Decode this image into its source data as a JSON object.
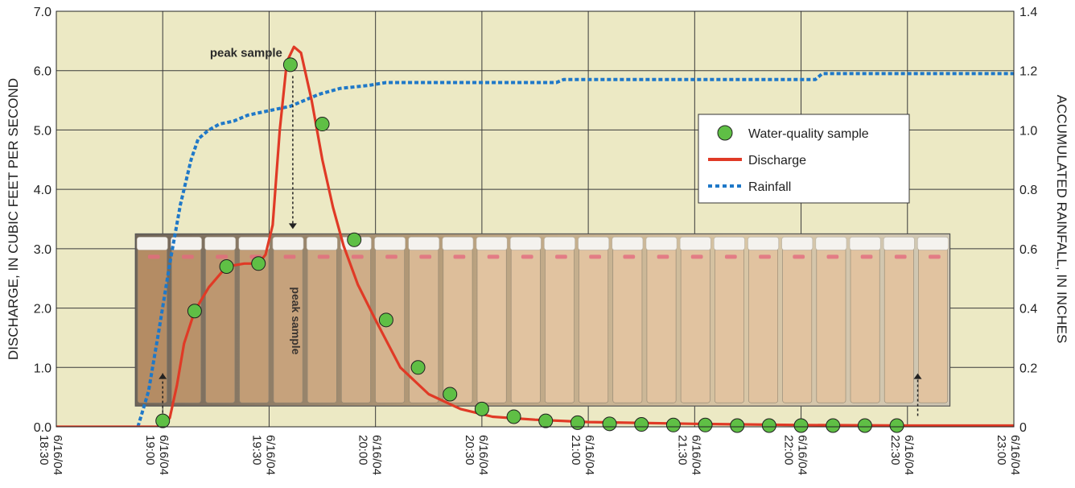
{
  "chart_data": {
    "type": "line",
    "y_left_label": "DISCHARGE, IN CUBIC FEET PER SECOND",
    "y_right_label": "ACCUMULATED RAINFALL, IN INCHES",
    "y_left_ticks": [
      "0.0",
      "1.0",
      "2.0",
      "3.0",
      "4.0",
      "5.0",
      "6.0",
      "7.0"
    ],
    "y_right_ticks": [
      "0",
      "0.2",
      "0.4",
      "0.6",
      "0.8",
      "1.0",
      "1.2",
      "1.4"
    ],
    "ylim_left": [
      0,
      7
    ],
    "ylim_right": [
      0,
      1.4
    ],
    "xlim": [
      "6/16/04 18:30",
      "6/16/04 23:00"
    ],
    "x_tick_labels": [
      {
        "time": "18:30",
        "date": "6/16/04"
      },
      {
        "time": "19:00",
        "date": "6/16/04"
      },
      {
        "time": "19:30",
        "date": "6/16/04"
      },
      {
        "time": "20:00",
        "date": "6/16/04"
      },
      {
        "time": "20:30",
        "date": "6/16/04"
      },
      {
        "time": "21:00",
        "date": "6/16/04"
      },
      {
        "time": "21:30",
        "date": "6/16/04"
      },
      {
        "time": "22:00",
        "date": "6/16/04"
      },
      {
        "time": "22:30",
        "date": "6/16/04"
      },
      {
        "time": "23:00",
        "date": "6/16/04"
      }
    ],
    "grid": true,
    "legend": {
      "placement": "upper-right",
      "entries": [
        "Water-quality sample",
        "Discharge",
        "Rainfall"
      ]
    },
    "annotations": {
      "peak_label": "peak sample",
      "photo_peak_label": "peak sample"
    },
    "series": [
      {
        "name": "Discharge",
        "axis": "left",
        "color": "#e03a26",
        "style": "solid",
        "points": [
          [
            "18:30",
            0.0
          ],
          [
            "19:00",
            0.0
          ],
          [
            "19:02",
            0.15
          ],
          [
            "19:04",
            0.7
          ],
          [
            "19:06",
            1.4
          ],
          [
            "19:09",
            1.95
          ],
          [
            "19:13",
            2.35
          ],
          [
            "19:18",
            2.7
          ],
          [
            "19:23",
            2.75
          ],
          [
            "19:27",
            2.75
          ],
          [
            "19:29",
            2.9
          ],
          [
            "19:31",
            3.4
          ],
          [
            "19:33",
            5.0
          ],
          [
            "19:35",
            6.15
          ],
          [
            "19:37",
            6.4
          ],
          [
            "19:39",
            6.3
          ],
          [
            "19:42",
            5.5
          ],
          [
            "19:45",
            4.5
          ],
          [
            "19:48",
            3.7
          ],
          [
            "19:51",
            3.05
          ],
          [
            "19:55",
            2.4
          ],
          [
            "20:00",
            1.8
          ],
          [
            "20:07",
            1.0
          ],
          [
            "20:15",
            0.55
          ],
          [
            "20:24",
            0.3
          ],
          [
            "20:33",
            0.17
          ],
          [
            "20:45",
            0.12
          ],
          [
            "21:00",
            0.08
          ],
          [
            "21:30",
            0.05
          ],
          [
            "22:00",
            0.03
          ],
          [
            "22:30",
            0.02
          ],
          [
            "23:00",
            0.02
          ]
        ]
      },
      {
        "name": "Rainfall",
        "axis": "right",
        "color": "#1f78c8",
        "style": "dotted",
        "points": [
          [
            "18:53",
            0.0
          ],
          [
            "18:56",
            0.12
          ],
          [
            "18:59",
            0.33
          ],
          [
            "19:02",
            0.55
          ],
          [
            "19:05",
            0.75
          ],
          [
            "19:08",
            0.9
          ],
          [
            "19:10",
            0.97
          ],
          [
            "19:13",
            1.0
          ],
          [
            "19:16",
            1.02
          ],
          [
            "19:20",
            1.03
          ],
          [
            "19:24",
            1.05
          ],
          [
            "19:28",
            1.06
          ],
          [
            "19:32",
            1.07
          ],
          [
            "19:36",
            1.08
          ],
          [
            "19:40",
            1.1
          ],
          [
            "19:44",
            1.12
          ],
          [
            "19:50",
            1.14
          ],
          [
            "19:58",
            1.15
          ],
          [
            "20:03",
            1.16
          ],
          [
            "20:20",
            1.16
          ],
          [
            "20:40",
            1.16
          ],
          [
            "20:51",
            1.16
          ],
          [
            "20:53",
            1.17
          ],
          [
            "21:20",
            1.17
          ],
          [
            "22:04",
            1.17
          ],
          [
            "22:06",
            1.19
          ],
          [
            "23:00",
            1.19
          ]
        ]
      },
      {
        "name": "Water-quality sample",
        "axis": "left",
        "color": "#5fbf45",
        "style": "marker",
        "points": [
          [
            "19:00",
            0.1
          ],
          [
            "19:09",
            1.95
          ],
          [
            "19:18",
            2.7
          ],
          [
            "19:27",
            2.75
          ],
          [
            "19:36",
            6.1
          ],
          [
            "19:45",
            5.1
          ],
          [
            "19:54",
            3.15
          ],
          [
            "20:03",
            1.8
          ],
          [
            "20:12",
            1.0
          ],
          [
            "20:21",
            0.55
          ],
          [
            "20:30",
            0.3
          ],
          [
            "20:39",
            0.17
          ],
          [
            "20:48",
            0.1
          ],
          [
            "20:57",
            0.07
          ],
          [
            "21:06",
            0.05
          ],
          [
            "21:15",
            0.04
          ],
          [
            "21:24",
            0.03
          ],
          [
            "21:33",
            0.03
          ],
          [
            "21:42",
            0.02
          ],
          [
            "21:51",
            0.02
          ],
          [
            "22:00",
            0.02
          ],
          [
            "22:09",
            0.02
          ],
          [
            "22:18",
            0.02
          ],
          [
            "22:27",
            0.02
          ]
        ]
      }
    ]
  },
  "colors": {
    "plot_background": "#ece9c4",
    "grid": "#3a3a3a",
    "discharge": "#e03a26",
    "rainfall": "#1f78c8",
    "sample_marker": "#5fbf45"
  }
}
